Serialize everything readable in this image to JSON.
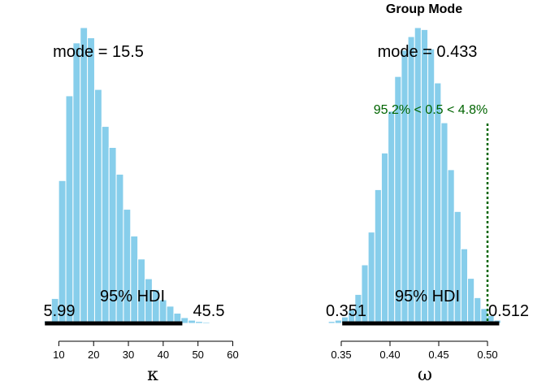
{
  "chart_data": [
    {
      "type": "bar",
      "title": "",
      "xlabel": "κ",
      "xlim": [
        5,
        76
      ],
      "ticks": [
        10,
        20,
        30,
        40,
        50,
        60
      ],
      "tick_labels": [
        "10",
        "20",
        "30",
        "40",
        "50",
        "60"
      ],
      "bin_start": 5.8,
      "bin_width": 2.07,
      "counts": [
        4,
        39,
        224,
        357,
        440,
        464,
        448,
        367,
        309,
        276,
        234,
        179,
        137,
        101,
        70,
        53,
        37,
        27,
        16,
        9,
        5,
        3,
        2,
        1,
        1,
        1,
        0,
        0,
        0,
        0,
        0,
        0,
        0,
        0
      ],
      "mode_text": "mode = 15.5",
      "hdi_text": "95% HDI",
      "hdi": [
        5.99,
        45.5
      ],
      "hdi_low_text": "5.99",
      "hdi_high_text": "45.5",
      "bar_color": "#87CEEB"
    },
    {
      "type": "bar",
      "title": "Group Mode",
      "xlabel": "ω",
      "xlim": [
        0.33,
        0.56
      ],
      "ticks": [
        0.35,
        0.4,
        0.45,
        0.5
      ],
      "tick_labels": [
        "0.35",
        "0.40",
        "0.45",
        "0.50"
      ],
      "bin_start": 0.33,
      "bin_width": 0.0068,
      "counts": [
        1,
        3,
        5,
        10,
        21,
        45,
        91,
        142,
        208,
        265,
        330,
        384,
        425,
        446,
        460,
        457,
        427,
        374,
        312,
        239,
        174,
        116,
        70,
        40,
        23,
        12,
        5
      ],
      "mode_text": "mode = 0.433",
      "hdi_text": "95% HDI",
      "hdi": [
        0.351,
        0.512
      ],
      "hdi_low_text": "0.351",
      "hdi_high_text": "0.512",
      "comp_value": 0.5,
      "comp_text": "95.2% < 0.5 < 4.8%",
      "bar_color": "#87CEEB",
      "comp_color": "#006400"
    }
  ]
}
